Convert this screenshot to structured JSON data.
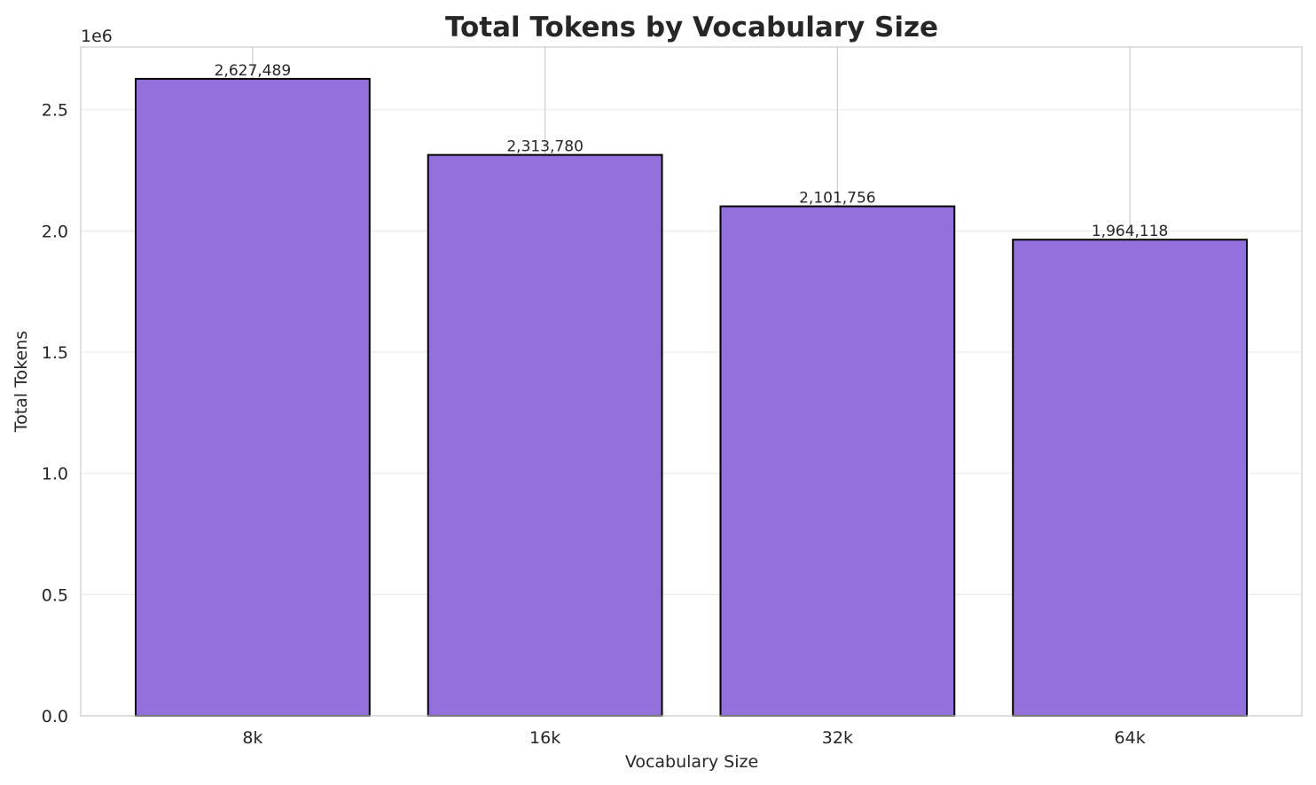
{
  "chart_data": {
    "type": "bar",
    "title": "Total Tokens by Vocabulary Size",
    "xlabel": "Vocabulary Size",
    "ylabel": "Total Tokens",
    "y_offset_label": "1e6",
    "categories": [
      "8k",
      "16k",
      "32k",
      "64k"
    ],
    "values": [
      2627489,
      2313780,
      2101756,
      1964118
    ],
    "value_labels": [
      "2,627,489",
      "2,313,780",
      "2,101,756",
      "1,964,118"
    ],
    "ylim": [
      0,
      2758863
    ],
    "yticks": [
      0,
      500000,
      1000000,
      1500000,
      2000000,
      2500000
    ],
    "ytick_labels": [
      "0.0",
      "0.5",
      "1.0",
      "1.5",
      "2.0",
      "2.5"
    ],
    "grid": true,
    "bar_color": "#9370DB",
    "bar_edge_color": "#000000"
  }
}
